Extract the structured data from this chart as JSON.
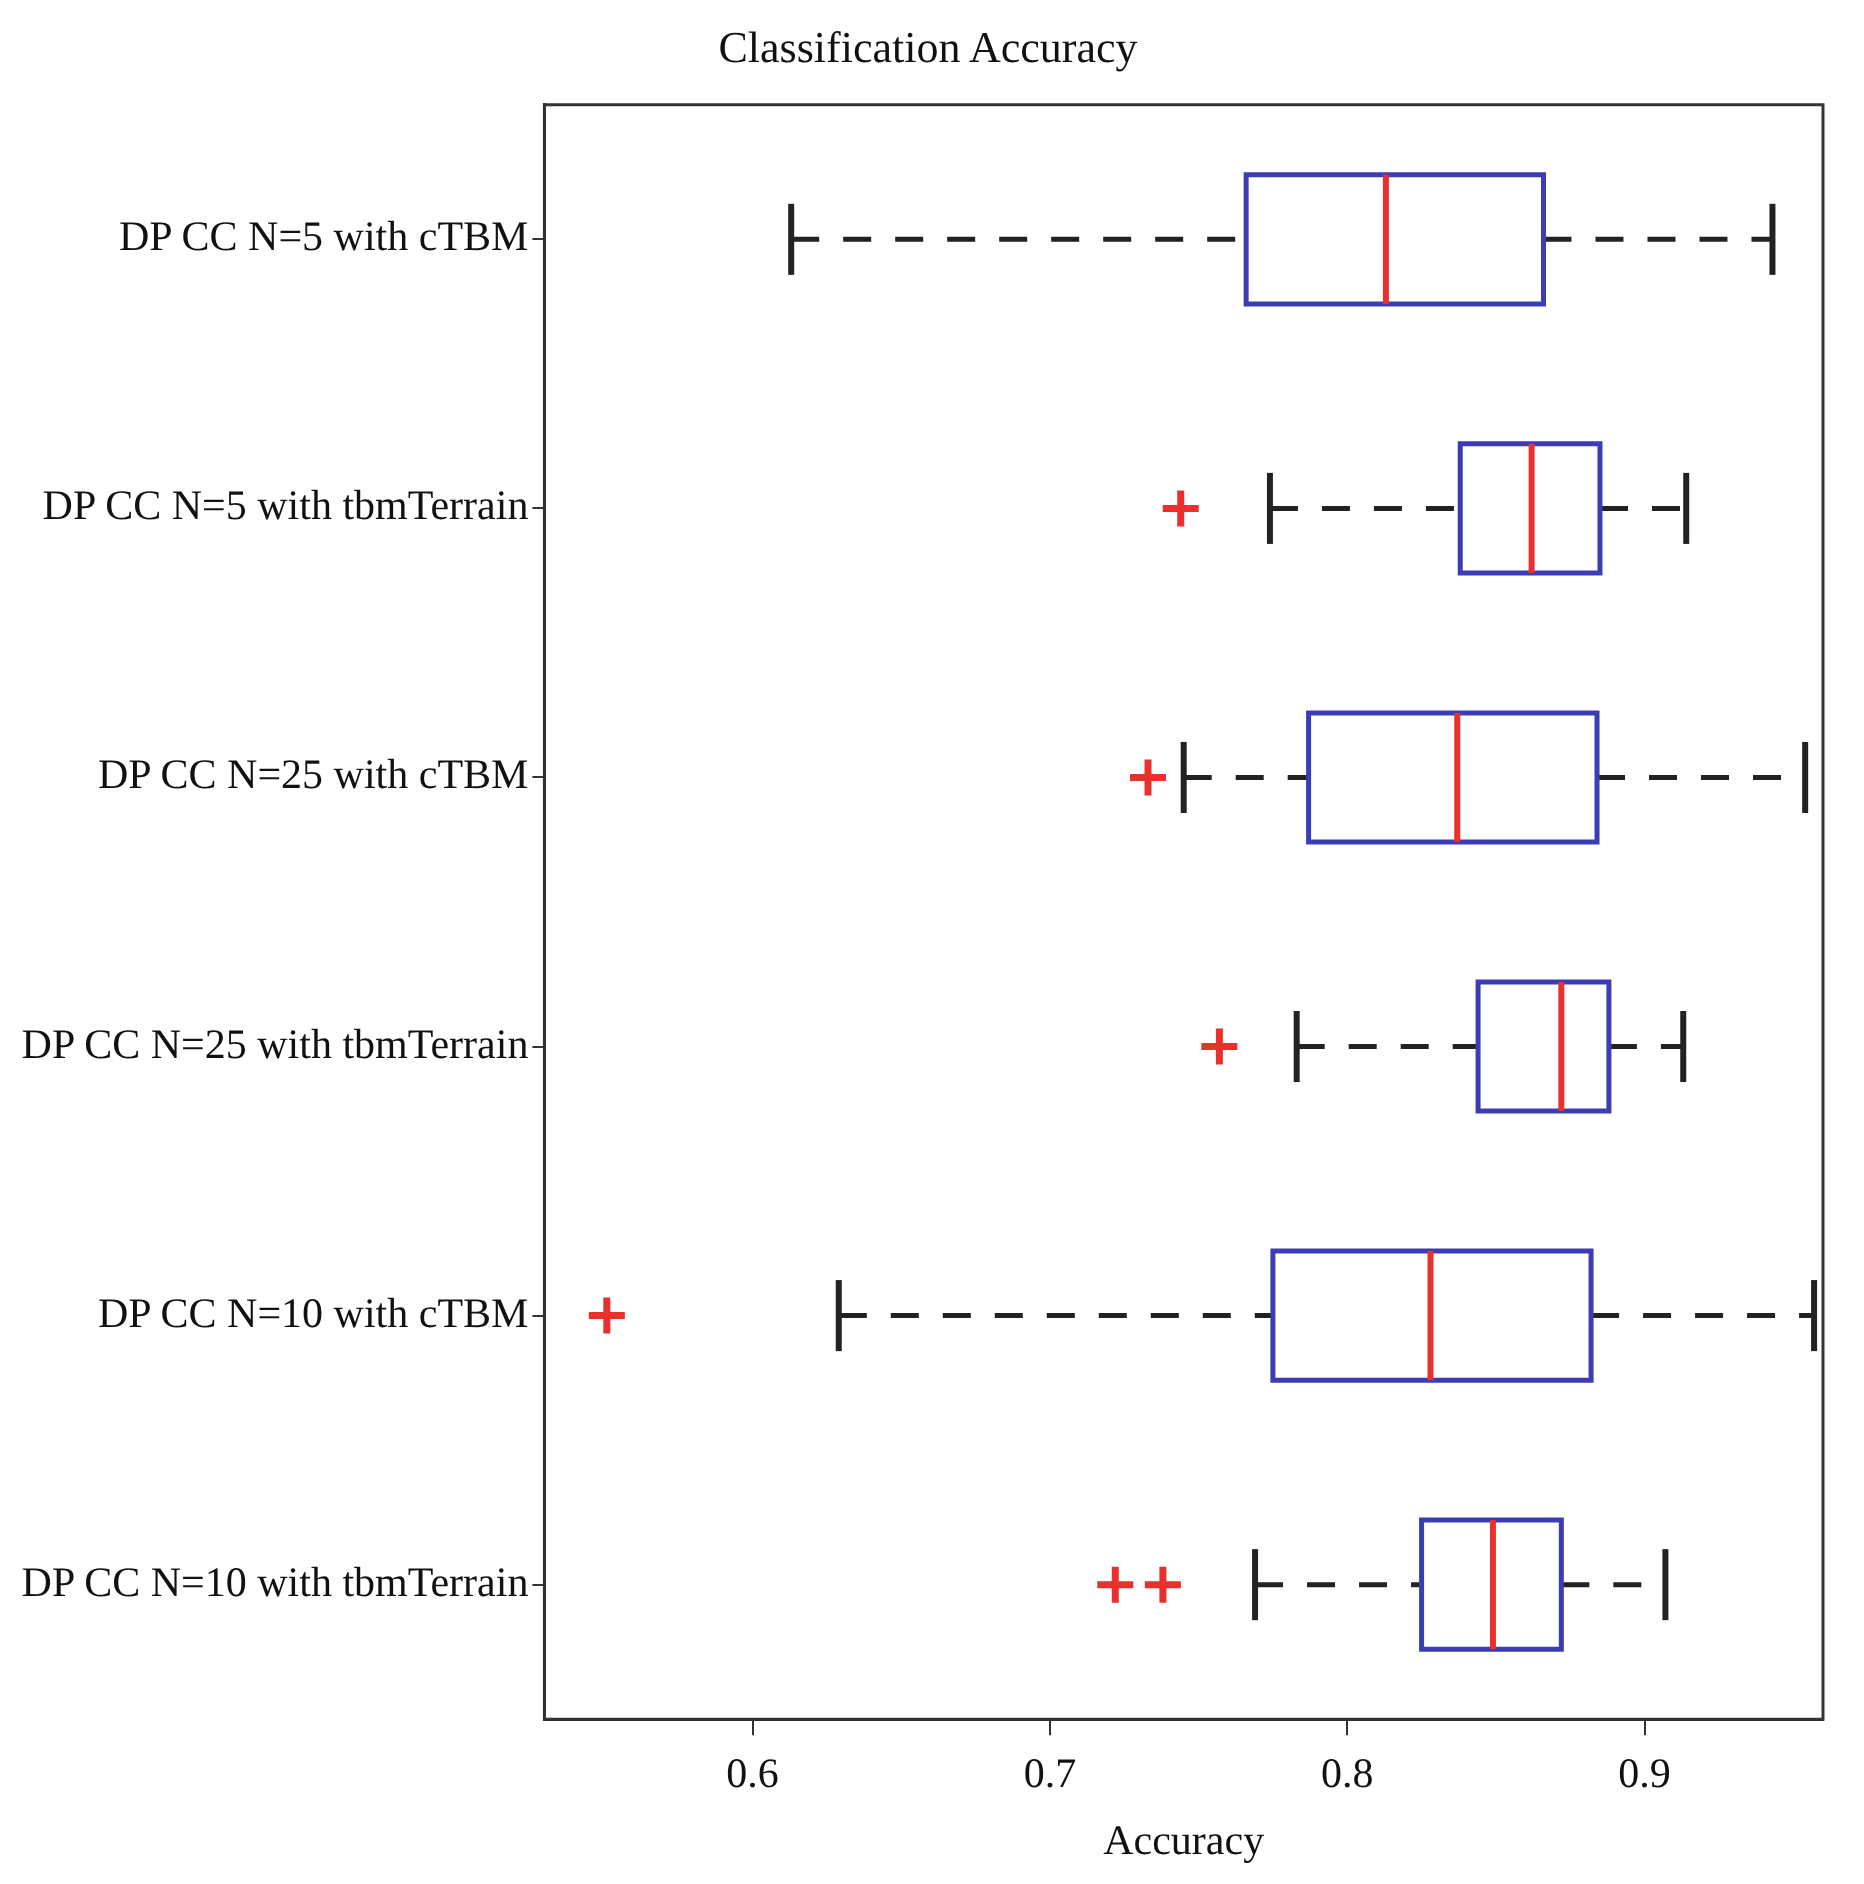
{
  "chart_data": {
    "type": "box",
    "orientation": "horizontal",
    "title": "Classification Accuracy",
    "xlabel": "Accuracy",
    "categories": [
      "DP CC N=5 with cTBM",
      "DP CC N=5 with tbmTerrain",
      "DP CC N=25 with cTBM",
      "DP CC N=25 with tbmTerrain",
      "DP CC N=10 with cTBM",
      "DP CC N=10 with tbmTerrain"
    ],
    "boxes": [
      {
        "low": 0.613,
        "q1": 0.766,
        "median": 0.813,
        "q3": 0.866,
        "high": 0.943
      },
      {
        "low": 0.774,
        "q1": 0.838,
        "median": 0.862,
        "q3": 0.885,
        "high": 0.914,
        "outliers": [
          0.744
        ]
      },
      {
        "low": 0.745,
        "q1": 0.787,
        "median": 0.837,
        "q3": 0.884,
        "high": 0.954,
        "outliers": [
          0.733
        ]
      },
      {
        "low": 0.783,
        "q1": 0.844,
        "median": 0.872,
        "q3": 0.888,
        "high": 0.913,
        "outliers": [
          0.757
        ]
      },
      {
        "low": 0.629,
        "q1": 0.775,
        "median": 0.828,
        "q3": 0.882,
        "high": 0.957,
        "outliers": [
          0.551
        ]
      },
      {
        "low": 0.769,
        "q1": 0.825,
        "median": 0.849,
        "q3": 0.872,
        "high": 0.907,
        "outliers": [
          0.722,
          0.738
        ]
      }
    ],
    "xlim": [
      0.53,
      0.96
    ],
    "xticks": [
      0.6,
      0.7,
      0.8,
      0.9
    ],
    "grid": false,
    "legend": false,
    "marker": "cross"
  }
}
